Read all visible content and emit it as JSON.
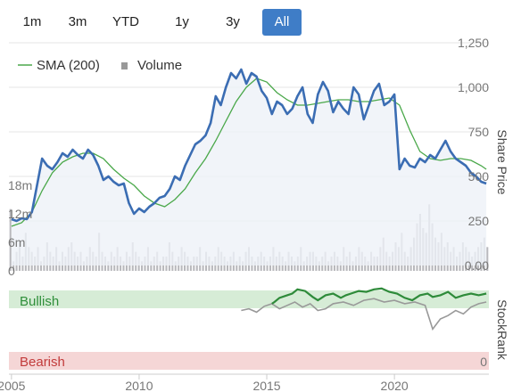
{
  "range_buttons": [
    {
      "label": "1m",
      "active": false
    },
    {
      "label": "3m",
      "active": false
    },
    {
      "label": "YTD",
      "active": false
    },
    {
      "label": "1y",
      "active": false
    },
    {
      "label": "3y",
      "active": false
    },
    {
      "label": "All",
      "active": true
    }
  ],
  "legend": {
    "sma_label": "SMA (200)",
    "volume_label": "Volume"
  },
  "colors": {
    "price": "#3b6db3",
    "sma": "#4aa84a",
    "volume": "#b8b8bc",
    "bullish_band": "#d6ecd6",
    "bearish_band": "#f5d6d6",
    "bullish_text": "#2f8f3a",
    "bearish_text": "#c23b3b",
    "rank_green": "#2e8b3a",
    "rank_gray": "#999999",
    "area_fill": "#eef1f8"
  },
  "stockrank": {
    "axis_title": "StockRank",
    "bullish_label": "Bullish",
    "bearish_label": "Bearish",
    "zero_label": "0"
  },
  "chart_data": [
    {
      "type": "line",
      "series": [
        {
          "name": "Share Price",
          "x": [
            2005.0,
            2005.2,
            2005.4,
            2005.6,
            2005.8,
            2006.0,
            2006.2,
            2006.4,
            2006.6,
            2006.8,
            2007.0,
            2007.2,
            2007.4,
            2007.6,
            2007.8,
            2008.0,
            2008.2,
            2008.4,
            2008.6,
            2008.8,
            2009.0,
            2009.2,
            2009.4,
            2009.6,
            2009.8,
            2010.0,
            2010.2,
            2010.4,
            2010.6,
            2010.8,
            2011.0,
            2011.2,
            2011.4,
            2011.6,
            2011.8,
            2012.0,
            2012.2,
            2012.4,
            2012.6,
            2012.8,
            2013.0,
            2013.2,
            2013.4,
            2013.6,
            2013.8,
            2014.0,
            2014.2,
            2014.4,
            2014.6,
            2014.8,
            2015.0,
            2015.2,
            2015.4,
            2015.6,
            2015.8,
            2016.0,
            2016.2,
            2016.4,
            2016.6,
            2016.8,
            2017.0,
            2017.2,
            2017.4,
            2017.6,
            2017.8,
            2018.0,
            2018.2,
            2018.4,
            2018.6,
            2018.8,
            2019.0,
            2019.2,
            2019.4,
            2019.6,
            2019.8,
            2020.0,
            2020.2,
            2020.4,
            2020.6,
            2020.8,
            2021.0,
            2021.2,
            2021.4,
            2021.6,
            2021.8,
            2022.0,
            2022.2,
            2022.4,
            2022.6,
            2022.8,
            2023.0,
            2023.2,
            2023.4,
            2023.6
          ],
          "y": [
            260,
            250,
            265,
            260,
            300,
            450,
            600,
            560,
            540,
            580,
            630,
            610,
            650,
            620,
            600,
            650,
            620,
            560,
            480,
            500,
            470,
            450,
            460,
            350,
            290,
            320,
            300,
            330,
            350,
            380,
            390,
            430,
            500,
            480,
            560,
            620,
            680,
            700,
            730,
            800,
            950,
            900,
            1000,
            1080,
            1050,
            1100,
            1020,
            1080,
            1060,
            980,
            940,
            850,
            920,
            900,
            850,
            880,
            950,
            1000,
            850,
            800,
            960,
            1030,
            980,
            860,
            920,
            880,
            850,
            1000,
            960,
            820,
            900,
            980,
            1020,
            900,
            920,
            960,
            540,
            600,
            560,
            550,
            600,
            580,
            620,
            600,
            650,
            700,
            640,
            600,
            580,
            560,
            520,
            500,
            470,
            460
          ]
        },
        {
          "name": "SMA (200)",
          "x": [
            2005.0,
            2005.4,
            2005.8,
            2006.2,
            2006.6,
            2007.0,
            2007.4,
            2007.8,
            2008.2,
            2008.6,
            2009.0,
            2009.4,
            2009.8,
            2010.2,
            2010.6,
            2011.0,
            2011.4,
            2011.8,
            2012.2,
            2012.6,
            2013.0,
            2013.4,
            2013.8,
            2014.2,
            2014.6,
            2015.0,
            2015.4,
            2015.8,
            2016.2,
            2016.6,
            2017.0,
            2017.4,
            2017.8,
            2018.2,
            2018.6,
            2019.0,
            2019.4,
            2019.8,
            2020.2,
            2020.6,
            2021.0,
            2021.4,
            2021.8,
            2022.2,
            2022.6,
            2023.0,
            2023.4,
            2023.6
          ],
          "y": [
            220,
            240,
            300,
            420,
            520,
            580,
            610,
            630,
            630,
            600,
            540,
            490,
            450,
            390,
            350,
            330,
            370,
            430,
            520,
            600,
            700,
            810,
            920,
            1000,
            1050,
            1030,
            970,
            930,
            900,
            900,
            910,
            920,
            930,
            930,
            920,
            920,
            930,
            940,
            900,
            760,
            640,
            600,
            590,
            600,
            600,
            590,
            560,
            540
          ]
        }
      ],
      "ylabel": "Share Price",
      "ylim": [
        0,
        1250
      ],
      "xlim": [
        2004.9,
        2023.7
      ],
      "x_ticks": [
        2005,
        2010,
        2015,
        2020
      ],
      "x_tick_labels": [
        "2005",
        "2010",
        "2015",
        "2020"
      ],
      "y_ticks": [
        0,
        250,
        500,
        750,
        1000,
        1250
      ],
      "y_tick_labels": [
        "0.00",
        "250",
        "500",
        "750",
        "1,000",
        "1,250"
      ],
      "legend_position": "top-left",
      "grid": true
    },
    {
      "type": "bar",
      "name": "Volume",
      "ylim": [
        0,
        27
      ],
      "y_ticks": [
        0,
        6,
        12,
        18
      ],
      "y_tick_labels": [
        "0",
        "6m",
        "12m",
        "18m"
      ],
      "x_start": 2004.9,
      "x_end": 2023.6,
      "values": [
        13,
        2,
        4,
        6,
        3,
        8,
        5,
        4,
        3,
        5,
        2,
        3,
        6,
        4,
        3,
        5,
        2,
        4,
        3,
        5,
        6,
        4,
        3,
        4,
        2,
        3,
        5,
        4,
        3,
        8,
        4,
        3,
        2,
        4,
        3,
        5,
        3,
        2,
        4,
        3,
        6,
        4,
        3,
        2,
        3,
        5,
        2,
        3,
        4,
        2,
        3,
        3,
        6,
        4,
        2,
        3,
        5,
        4,
        3,
        2,
        3,
        3,
        5,
        2,
        4,
        3,
        2,
        3,
        5,
        4,
        3,
        2,
        3,
        4,
        2,
        3,
        2,
        4,
        5,
        3,
        2,
        3,
        4,
        3,
        2,
        3,
        5,
        3,
        4,
        3,
        2,
        4,
        3,
        2,
        3,
        5,
        2,
        3,
        4,
        4,
        3,
        2,
        3,
        4,
        2,
        3,
        4,
        3,
        2,
        5,
        3,
        4,
        2,
        3,
        5,
        4,
        3,
        2,
        4,
        3,
        3,
        5,
        7,
        4,
        3,
        4,
        6,
        5,
        8,
        4,
        3,
        5,
        7,
        10,
        12,
        9,
        8,
        14,
        10,
        7,
        6,
        8,
        5,
        6,
        4,
        5,
        3,
        4,
        6,
        5,
        4,
        3,
        4,
        5,
        6,
        7,
        5
      ]
    },
    {
      "type": "line",
      "name": "StockRank",
      "xlim": [
        2004.9,
        2023.7
      ],
      "ylim": [
        0,
        100
      ],
      "series": [
        {
          "name": "Bullish",
          "x": [
            2015.2,
            2015.3,
            2015.5,
            2015.8,
            2016.0,
            2016.2,
            2016.5,
            2016.8,
            2017.0,
            2017.3,
            2017.6,
            2017.9,
            2018.1,
            2018.3,
            2018.6,
            2018.9,
            2019.2,
            2019.5,
            2019.8,
            2020.1,
            2020.4,
            2020.7,
            2021.0,
            2021.3,
            2021.5,
            2021.8,
            2022.1,
            2022.4,
            2022.7,
            2023.0,
            2023.3,
            2023.6
          ],
          "y": [
            78,
            80,
            85,
            88,
            90,
            95,
            93,
            86,
            82,
            88,
            90,
            85,
            88,
            90,
            93,
            92,
            95,
            96,
            92,
            90,
            85,
            82,
            88,
            90,
            86,
            88,
            92,
            85,
            88,
            90,
            88,
            90
          ]
        },
        {
          "name": "Rank",
          "x": [
            2014.0,
            2014.3,
            2014.6,
            2014.9,
            2015.2,
            2015.5,
            2015.8,
            2016.1,
            2016.4,
            2016.7,
            2017.0,
            2017.3,
            2017.6,
            2018.0,
            2018.4,
            2018.8,
            2019.2,
            2019.6,
            2020.0,
            2020.4,
            2020.8,
            2021.2,
            2021.5,
            2021.8,
            2022.1,
            2022.4,
            2022.7,
            2023.0,
            2023.3,
            2023.6
          ],
          "y": [
            70,
            72,
            68,
            75,
            78,
            72,
            76,
            80,
            74,
            78,
            70,
            72,
            78,
            80,
            76,
            82,
            84,
            80,
            82,
            78,
            80,
            76,
            48,
            60,
            64,
            70,
            66,
            74,
            78,
            80
          ]
        }
      ]
    }
  ]
}
